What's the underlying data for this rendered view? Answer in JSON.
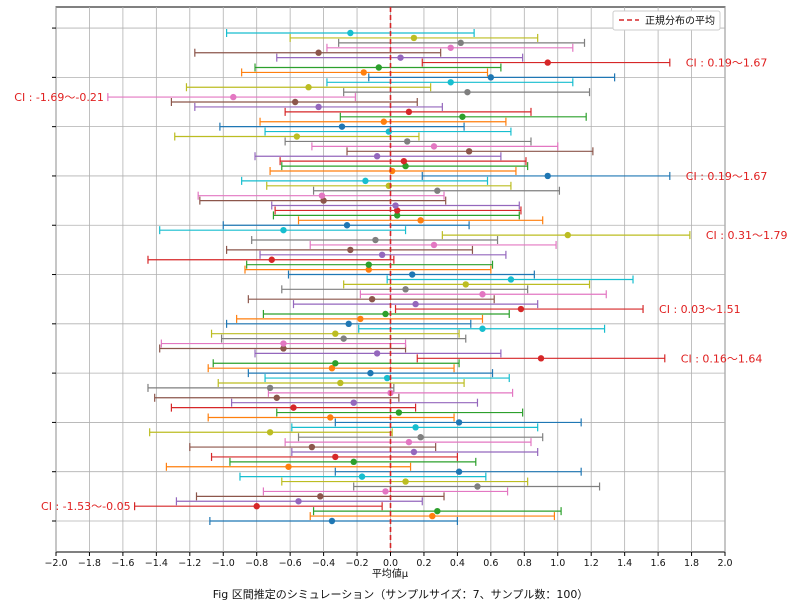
{
  "chart_data": {
    "type": "interval",
    "title": "Fig 区間推定のシミュレーション（サンプルサイズ：7、サンプル数：100）",
    "xlabel": "平均値μ",
    "ylabel": "",
    "xlim": [
      -2.0,
      2.0
    ],
    "xticks": [
      "−2.0",
      "−1.8",
      "−1.6",
      "−1.4",
      "−1.2",
      "−1.0",
      "−0.8",
      "−0.6",
      "−0.4",
      "−0.2",
      "0.0",
      "0.2",
      "0.4",
      "0.6",
      "0.8",
      "1.0",
      "1.2",
      "1.4",
      "1.6",
      "1.8",
      "2.0"
    ],
    "true_mean": 0.0,
    "legend": {
      "label": "正規分布の平均",
      "placement": "top-right"
    },
    "colors": [
      "#1f77b4",
      "#ff7f0e",
      "#2ca02c",
      "#d62728",
      "#9467bd",
      "#8c564b",
      "#e377c2",
      "#7f7f7f",
      "#bcbd22",
      "#17becf"
    ],
    "intervals": [
      {
        "mean": -0.35,
        "low": -1.08,
        "high": 0.4
      },
      {
        "mean": 0.25,
        "low": -0.48,
        "high": 0.98
      },
      {
        "mean": 0.28,
        "low": -0.46,
        "high": 1.02
      },
      {
        "mean": -0.8,
        "low": -1.53,
        "high": -0.05
      },
      {
        "mean": -0.55,
        "low": -1.28,
        "high": 0.19
      },
      {
        "mean": -0.42,
        "low": -1.16,
        "high": 0.32
      },
      {
        "mean": -0.03,
        "low": -0.76,
        "high": 0.7
      },
      {
        "mean": 0.52,
        "low": -0.22,
        "high": 1.25
      },
      {
        "mean": 0.09,
        "low": -0.65,
        "high": 0.82
      },
      {
        "mean": -0.17,
        "low": -0.9,
        "high": 0.57
      },
      {
        "mean": 0.41,
        "low": -0.33,
        "high": 1.14
      },
      {
        "mean": -0.61,
        "low": -1.34,
        "high": 0.12
      },
      {
        "mean": -0.22,
        "low": -0.96,
        "high": 0.51
      },
      {
        "mean": -0.33,
        "low": -1.07,
        "high": 0.4
      },
      {
        "mean": 0.14,
        "low": -0.59,
        "high": 0.88
      },
      {
        "mean": -0.47,
        "low": -1.2,
        "high": 0.27
      },
      {
        "mean": 0.11,
        "low": -0.63,
        "high": 0.84
      },
      {
        "mean": 0.18,
        "low": -0.55,
        "high": 0.91
      },
      {
        "mean": -0.72,
        "low": -1.44,
        "high": 0.01
      },
      {
        "mean": 0.15,
        "low": -0.59,
        "high": 0.88
      },
      {
        "mean": 0.41,
        "low": -0.33,
        "high": 1.14
      },
      {
        "mean": -0.36,
        "low": -1.09,
        "high": 0.38
      },
      {
        "mean": 0.05,
        "low": -0.68,
        "high": 0.79
      },
      {
        "mean": -0.58,
        "low": -1.31,
        "high": 0.15
      },
      {
        "mean": -0.22,
        "low": -0.95,
        "high": 0.52
      },
      {
        "mean": -0.68,
        "low": -1.41,
        "high": 0.05
      },
      {
        "mean": 0.0,
        "low": -0.73,
        "high": 0.73
      },
      {
        "mean": -0.72,
        "low": -1.45,
        "high": 0.02
      },
      {
        "mean": -0.3,
        "low": -1.03,
        "high": 0.44
      },
      {
        "mean": -0.02,
        "low": -0.75,
        "high": 0.71
      },
      {
        "mean": -0.12,
        "low": -0.85,
        "high": 0.61
      },
      {
        "mean": -0.35,
        "low": -1.09,
        "high": 0.38
      },
      {
        "mean": -0.33,
        "low": -1.06,
        "high": 0.41
      },
      {
        "mean": 0.9,
        "low": 0.16,
        "high": 1.64
      },
      {
        "mean": -0.08,
        "low": -0.81,
        "high": 0.66
      },
      {
        "mean": -0.64,
        "low": -1.38,
        "high": 0.09
      },
      {
        "mean": -0.64,
        "low": -1.37,
        "high": 0.09
      },
      {
        "mean": -0.28,
        "low": -1.01,
        "high": 0.45
      },
      {
        "mean": -0.33,
        "low": -1.07,
        "high": 0.41
      },
      {
        "mean": 0.55,
        "low": -0.19,
        "high": 1.28
      },
      {
        "mean": -0.25,
        "low": -0.98,
        "high": 0.48
      },
      {
        "mean": -0.18,
        "low": -0.92,
        "high": 0.55
      },
      {
        "mean": -0.03,
        "low": -0.76,
        "high": 0.71
      },
      {
        "mean": 0.78,
        "low": 0.03,
        "high": 1.51
      },
      {
        "mean": 0.15,
        "low": -0.58,
        "high": 0.88
      },
      {
        "mean": -0.11,
        "low": -0.85,
        "high": 0.62
      },
      {
        "mean": 0.55,
        "low": -0.18,
        "high": 1.29
      },
      {
        "mean": 0.09,
        "low": -0.65,
        "high": 0.82
      },
      {
        "mean": 0.45,
        "low": -0.28,
        "high": 1.19
      },
      {
        "mean": 0.72,
        "low": -0.02,
        "high": 1.45
      },
      {
        "mean": 0.13,
        "low": -0.61,
        "high": 0.86
      },
      {
        "mean": -0.13,
        "low": -0.87,
        "high": 0.6
      },
      {
        "mean": -0.13,
        "low": -0.86,
        "high": 0.61
      },
      {
        "mean": -0.71,
        "low": -1.45,
        "high": 0.02
      },
      {
        "mean": -0.05,
        "low": -0.78,
        "high": 0.69
      },
      {
        "mean": -0.24,
        "low": -0.98,
        "high": 0.49
      },
      {
        "mean": 0.26,
        "low": -0.48,
        "high": 0.99
      },
      {
        "mean": -0.09,
        "low": -0.83,
        "high": 0.64
      },
      {
        "mean": 1.06,
        "low": 0.31,
        "high": 1.79
      },
      {
        "mean": -0.64,
        "low": -1.38,
        "high": 0.09
      },
      {
        "mean": -0.26,
        "low": -1.0,
        "high": 0.47
      },
      {
        "mean": 0.18,
        "low": -0.55,
        "high": 0.91
      },
      {
        "mean": 0.04,
        "low": -0.7,
        "high": 0.77
      },
      {
        "mean": 0.04,
        "low": -0.69,
        "high": 0.78
      },
      {
        "mean": 0.03,
        "low": -0.71,
        "high": 0.77
      },
      {
        "mean": -0.4,
        "low": -1.14,
        "high": 0.33
      },
      {
        "mean": -0.41,
        "low": -1.15,
        "high": 0.32
      },
      {
        "mean": 0.28,
        "low": -0.46,
        "high": 1.01
      },
      {
        "mean": -0.01,
        "low": -0.74,
        "high": 0.72
      },
      {
        "mean": -0.15,
        "low": -0.89,
        "high": 0.58
      },
      {
        "mean": 0.94,
        "low": 0.19,
        "high": 1.67
      },
      {
        "mean": 0.01,
        "low": -0.72,
        "high": 0.75
      },
      {
        "mean": 0.09,
        "low": -0.65,
        "high": 0.82
      },
      {
        "mean": 0.08,
        "low": -0.66,
        "high": 0.81
      },
      {
        "mean": -0.08,
        "low": -0.81,
        "high": 0.66
      },
      {
        "mean": 0.47,
        "low": -0.26,
        "high": 1.21
      },
      {
        "mean": 0.26,
        "low": -0.47,
        "high": 1.0
      },
      {
        "mean": 0.1,
        "low": -0.63,
        "high": 0.84
      },
      {
        "mean": -0.56,
        "low": -1.29,
        "high": 0.17
      },
      {
        "mean": -0.01,
        "low": -0.75,
        "high": 0.72
      },
      {
        "mean": -0.29,
        "low": -1.02,
        "high": 0.44
      },
      {
        "mean": -0.04,
        "low": -0.78,
        "high": 0.69
      },
      {
        "mean": 0.43,
        "low": -0.3,
        "high": 1.17
      },
      {
        "mean": 0.11,
        "low": -0.63,
        "high": 0.84
      },
      {
        "mean": -0.43,
        "low": -1.17,
        "high": 0.31
      },
      {
        "mean": -0.57,
        "low": -1.31,
        "high": 0.16
      },
      {
        "mean": -0.94,
        "low": -1.69,
        "high": -0.21
      },
      {
        "mean": 0.46,
        "low": -0.28,
        "high": 1.19
      },
      {
        "mean": -0.49,
        "low": -1.22,
        "high": 0.24
      },
      {
        "mean": 0.36,
        "low": -0.38,
        "high": 1.09
      },
      {
        "mean": 0.6,
        "low": -0.13,
        "high": 1.34
      },
      {
        "mean": -0.16,
        "low": -0.89,
        "high": 0.58
      },
      {
        "mean": -0.07,
        "low": -0.81,
        "high": 0.66
      },
      {
        "mean": 0.94,
        "low": 0.19,
        "high": 1.67
      },
      {
        "mean": 0.06,
        "low": -0.68,
        "high": 0.79
      },
      {
        "mean": -0.43,
        "low": -1.17,
        "high": 0.3
      },
      {
        "mean": 0.36,
        "low": -0.38,
        "high": 1.09
      },
      {
        "mean": 0.42,
        "low": -0.31,
        "high": 1.16
      },
      {
        "mean": 0.14,
        "low": -0.6,
        "high": 0.88
      },
      {
        "mean": -0.24,
        "low": -0.98,
        "high": 0.5
      }
    ],
    "annotations": [
      {
        "index": 3,
        "side": "left",
        "text": "CI : -1.53～-0.05"
      },
      {
        "index": 33,
        "side": "right",
        "text": "CI : 0.16～1.64"
      },
      {
        "index": 43,
        "side": "right",
        "text": "CI : 0.03～1.51"
      },
      {
        "index": 58,
        "side": "right",
        "text": "CI : 0.31～1.79"
      },
      {
        "index": 70,
        "side": "right",
        "text": "CI : 0.19～1.67"
      },
      {
        "index": 86,
        "side": "left",
        "text": "CI : -1.69～-0.21"
      },
      {
        "index": 93,
        "side": "right",
        "text": "CI : 0.19～1.67"
      }
    ]
  }
}
